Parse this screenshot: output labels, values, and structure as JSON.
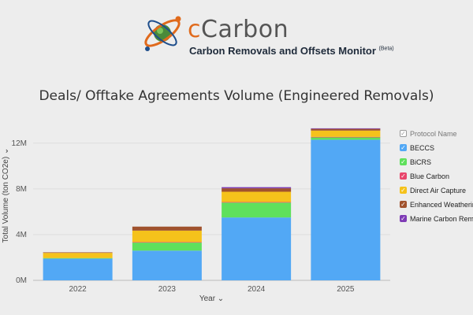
{
  "header": {
    "brand_prefix": "c",
    "brand_main": "Carbon",
    "subtitle": "Carbon Removals and Offsets Monitor",
    "badge": "(Beta)"
  },
  "colors": {
    "BECCS": "#52a8f5",
    "BiCRS": "#5fe05c",
    "Blue Carbon": "#e8456b",
    "Direct Air Capture": "#f5c21b",
    "Enhanced Weathering": "#a0522d",
    "Marine Carbon Removal": "#7e3bb5"
  },
  "chart_data": {
    "type": "bar",
    "stacked": true,
    "title": "Deals/ Offtake Agreements Volume (Engineered Removals)",
    "xlabel": "Year",
    "ylabel": "Total Volume (ton CO2e)",
    "categories": [
      "2022",
      "2023",
      "2024",
      "2025"
    ],
    "ylim": [
      0,
      13500000
    ],
    "y_ticks": [
      0,
      4000000,
      8000000,
      12000000
    ],
    "y_tick_labels": [
      "0M",
      "4M",
      "8M",
      "12M"
    ],
    "legend_title": "Protocol Name",
    "legend_position": "right",
    "grid": true,
    "series": [
      {
        "name": "BECCS",
        "values": [
          1900000,
          2600000,
          5500000,
          12300000
        ]
      },
      {
        "name": "BiCRS",
        "values": [
          50000,
          700000,
          1300000,
          200000
        ]
      },
      {
        "name": "Blue Carbon",
        "values": [
          0,
          50000,
          50000,
          50000
        ]
      },
      {
        "name": "Direct Air Capture",
        "values": [
          450000,
          1000000,
          900000,
          550000
        ]
      },
      {
        "name": "Enhanced Weathering",
        "values": [
          50000,
          350000,
          300000,
          150000
        ]
      },
      {
        "name": "Marine Carbon Removal",
        "values": [
          0,
          0,
          100000,
          50000
        ]
      }
    ],
    "legend_labels": [
      "BECCS",
      "BiCRS",
      "Blue Carbon",
      "Direct Air Capture",
      "Enhanced Weathering",
      "Marine Carbon Removal"
    ]
  }
}
